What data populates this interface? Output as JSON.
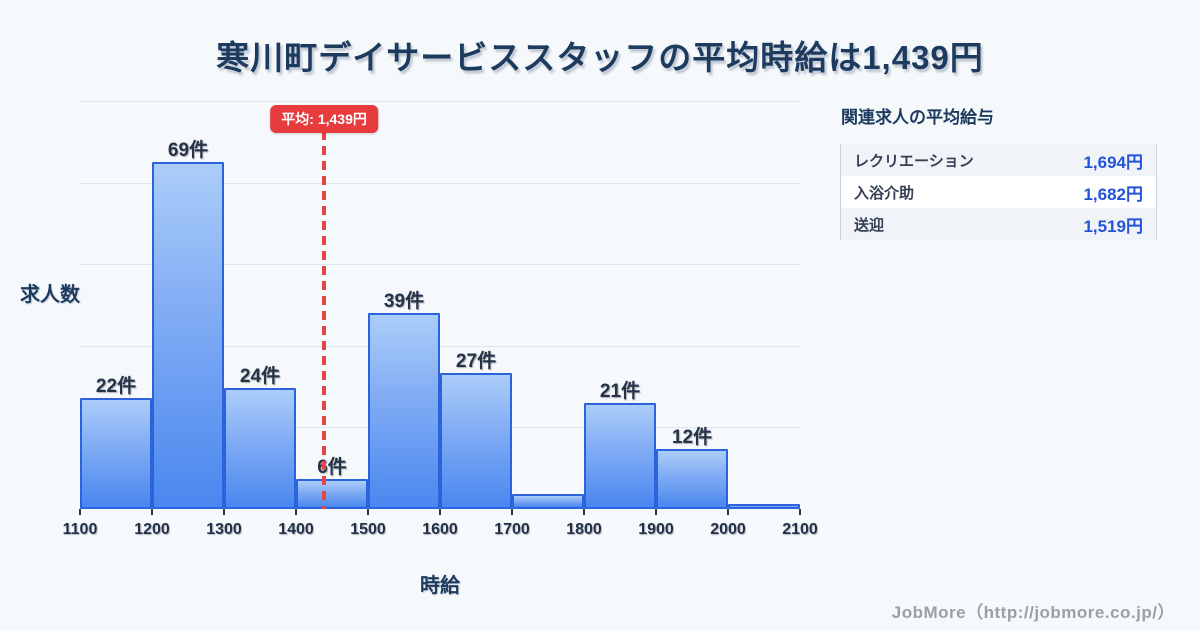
{
  "colors": {
    "background": "#f6f9fc",
    "title_navy": "#1d3a5f",
    "bar_fill_top": "#abcdf9",
    "bar_fill_bottom": "#4a87ef",
    "bar_border": "#2a63dc",
    "average_red": "#e73c3e",
    "panel_value_blue": "#2353d8",
    "footer_gray": "#9aa0a8"
  },
  "chart_data": {
    "type": "bar",
    "title": "寒川町デイサービススタッフの平均時給は1,439円",
    "xlabel": "時給",
    "ylabel": "求人数",
    "x_ticks": [
      "1100",
      "1200",
      "1300",
      "1400",
      "1500",
      "1600",
      "1700",
      "1800",
      "1900",
      "2000",
      "2100"
    ],
    "xlim": [
      1100,
      2100
    ],
    "ylim": [
      0,
      81
    ],
    "grid": "horizontal",
    "bins": [
      {
        "range": [
          1100,
          1200
        ],
        "value": 22,
        "label": "22件"
      },
      {
        "range": [
          1200,
          1300
        ],
        "value": 69,
        "label": "69件"
      },
      {
        "range": [
          1300,
          1400
        ],
        "value": 24,
        "label": "24件"
      },
      {
        "range": [
          1400,
          1500
        ],
        "value": 6,
        "label": "6件"
      },
      {
        "range": [
          1500,
          1600
        ],
        "value": 39,
        "label": "39件"
      },
      {
        "range": [
          1600,
          1700
        ],
        "value": 27,
        "label": "27件"
      },
      {
        "range": [
          1700,
          1800
        ],
        "value": 3,
        "label": ""
      },
      {
        "range": [
          1800,
          1900
        ],
        "value": 21,
        "label": "21件"
      },
      {
        "range": [
          1900,
          2000
        ],
        "value": 12,
        "label": "12件"
      },
      {
        "range": [
          2000,
          2100
        ],
        "value": 1,
        "label": ""
      }
    ],
    "average": {
      "value": 1439,
      "label": "平均: 1,439円"
    }
  },
  "side_panel": {
    "heading": "関連求人の平均給与",
    "rows": [
      {
        "label": "レクリエーション",
        "value": "1,694円"
      },
      {
        "label": "入浴介助",
        "value": "1,682円"
      },
      {
        "label": "送迎",
        "value": "1,519円"
      }
    ]
  },
  "footer": {
    "text": "JobMore（http://jobmore.co.jp/）"
  }
}
